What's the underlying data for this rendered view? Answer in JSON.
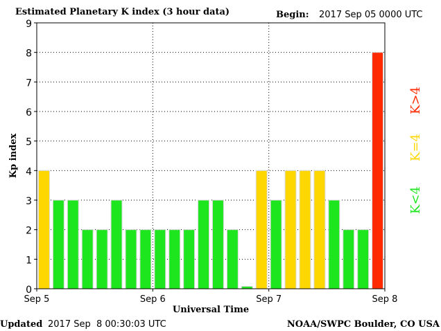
{
  "header": {
    "title": "Estimated Planetary K index (3 hour data)",
    "begin_label": "Begin:",
    "begin_value": "2017 Sep 05 0000 UTC"
  },
  "footer": {
    "updated_label": "Updated",
    "updated_value": "2017 Sep  8 00:30:03 UTC",
    "credit": "NOAA/SWPC Boulder, CO USA"
  },
  "legend": [
    {
      "label": "K>4",
      "color": "#ff2a00"
    },
    {
      "label": "K=4",
      "color": "#ffd700"
    },
    {
      "label": "K<4",
      "color": "#1ee61e"
    }
  ],
  "colors": {
    "below4": "#1ee61e",
    "equal4": "#ffd700",
    "above4": "#ff2a00",
    "bar_border": "#d8d8d8",
    "grid": "#000000"
  },
  "chart_data": {
    "type": "bar",
    "title": "Estimated Planetary K index (3 hour data)",
    "xlabel": "Universal Time",
    "ylabel": "Kp index",
    "ylim": [
      0,
      9
    ],
    "yticks": [
      0,
      1,
      2,
      3,
      4,
      5,
      6,
      7,
      8,
      9
    ],
    "xticks": [
      "Sep 5",
      "Sep 6",
      "Sep 7",
      "Sep 8"
    ],
    "interval_hours": 3,
    "grid": true,
    "values": [
      4,
      3,
      3,
      2,
      2,
      3,
      2,
      2,
      2,
      2,
      2,
      3,
      3,
      2,
      0,
      4,
      3,
      4,
      4,
      4,
      3,
      2,
      2,
      8
    ]
  }
}
